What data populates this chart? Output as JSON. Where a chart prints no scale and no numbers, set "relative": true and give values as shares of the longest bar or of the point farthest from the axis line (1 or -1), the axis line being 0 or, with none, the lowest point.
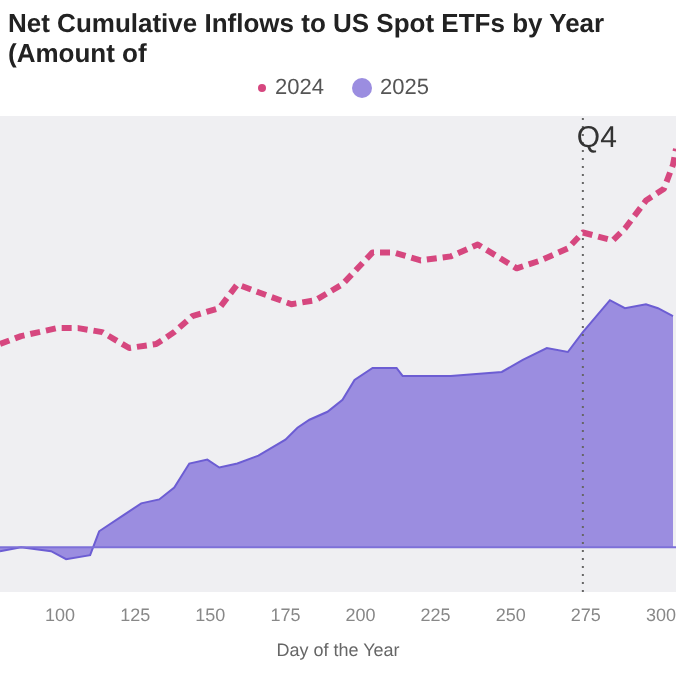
{
  "chart_data": {
    "type": "line",
    "title": "Net Cumulative Inflows to US Spot ETFs by Year (Amount of",
    "xlabel": "Day of the Year",
    "relative": true,
    "legend": "top",
    "xlim": [
      80,
      305
    ],
    "xticks": [
      100,
      125,
      150,
      175,
      200,
      225,
      250,
      275,
      300
    ],
    "series": [
      {
        "name": "2024",
        "line_style": "dashed",
        "color": "#d6477f",
        "x": [
          80,
          87,
          93,
          99,
          106,
          114,
          123,
          132,
          138,
          144,
          153,
          159,
          166,
          177,
          185,
          194,
          204,
          211,
          220,
          230,
          239,
          252,
          260,
          269,
          274,
          284,
          288,
          295,
          301,
          304,
          305
        ],
        "values": [
          0.51,
          0.53,
          0.54,
          0.55,
          0.55,
          0.54,
          0.5,
          0.51,
          0.54,
          0.58,
          0.6,
          0.66,
          0.64,
          0.61,
          0.62,
          0.66,
          0.74,
          0.74,
          0.72,
          0.73,
          0.76,
          0.7,
          0.72,
          0.75,
          0.79,
          0.77,
          0.8,
          0.87,
          0.9,
          0.96,
          1.0
        ]
      },
      {
        "name": "2025",
        "type": "area",
        "color": "#9b8de0",
        "x": [
          80,
          87,
          97,
          102,
          110,
          113,
          121,
          127,
          133,
          138,
          143,
          149,
          153,
          159,
          166,
          175,
          179,
          183,
          189,
          194,
          198,
          204,
          212,
          214,
          230,
          247,
          254,
          262,
          269,
          274,
          283,
          288,
          295,
          299,
          304
        ],
        "values": [
          -0.01,
          0.0,
          -0.01,
          -0.03,
          -0.02,
          0.04,
          0.08,
          0.11,
          0.12,
          0.15,
          0.21,
          0.22,
          0.2,
          0.21,
          0.23,
          0.27,
          0.3,
          0.32,
          0.34,
          0.37,
          0.42,
          0.45,
          0.45,
          0.43,
          0.43,
          0.44,
          0.47,
          0.5,
          0.49,
          0.54,
          0.62,
          0.6,
          0.61,
          0.6,
          0.58
        ]
      }
    ],
    "ref_lines": [
      {
        "axis": "x",
        "value": 274,
        "label": "Q4",
        "line_style": "dotted",
        "color": "#666666"
      },
      {
        "axis": "y",
        "value": 0,
        "color": "#7d70d8"
      }
    ]
  }
}
